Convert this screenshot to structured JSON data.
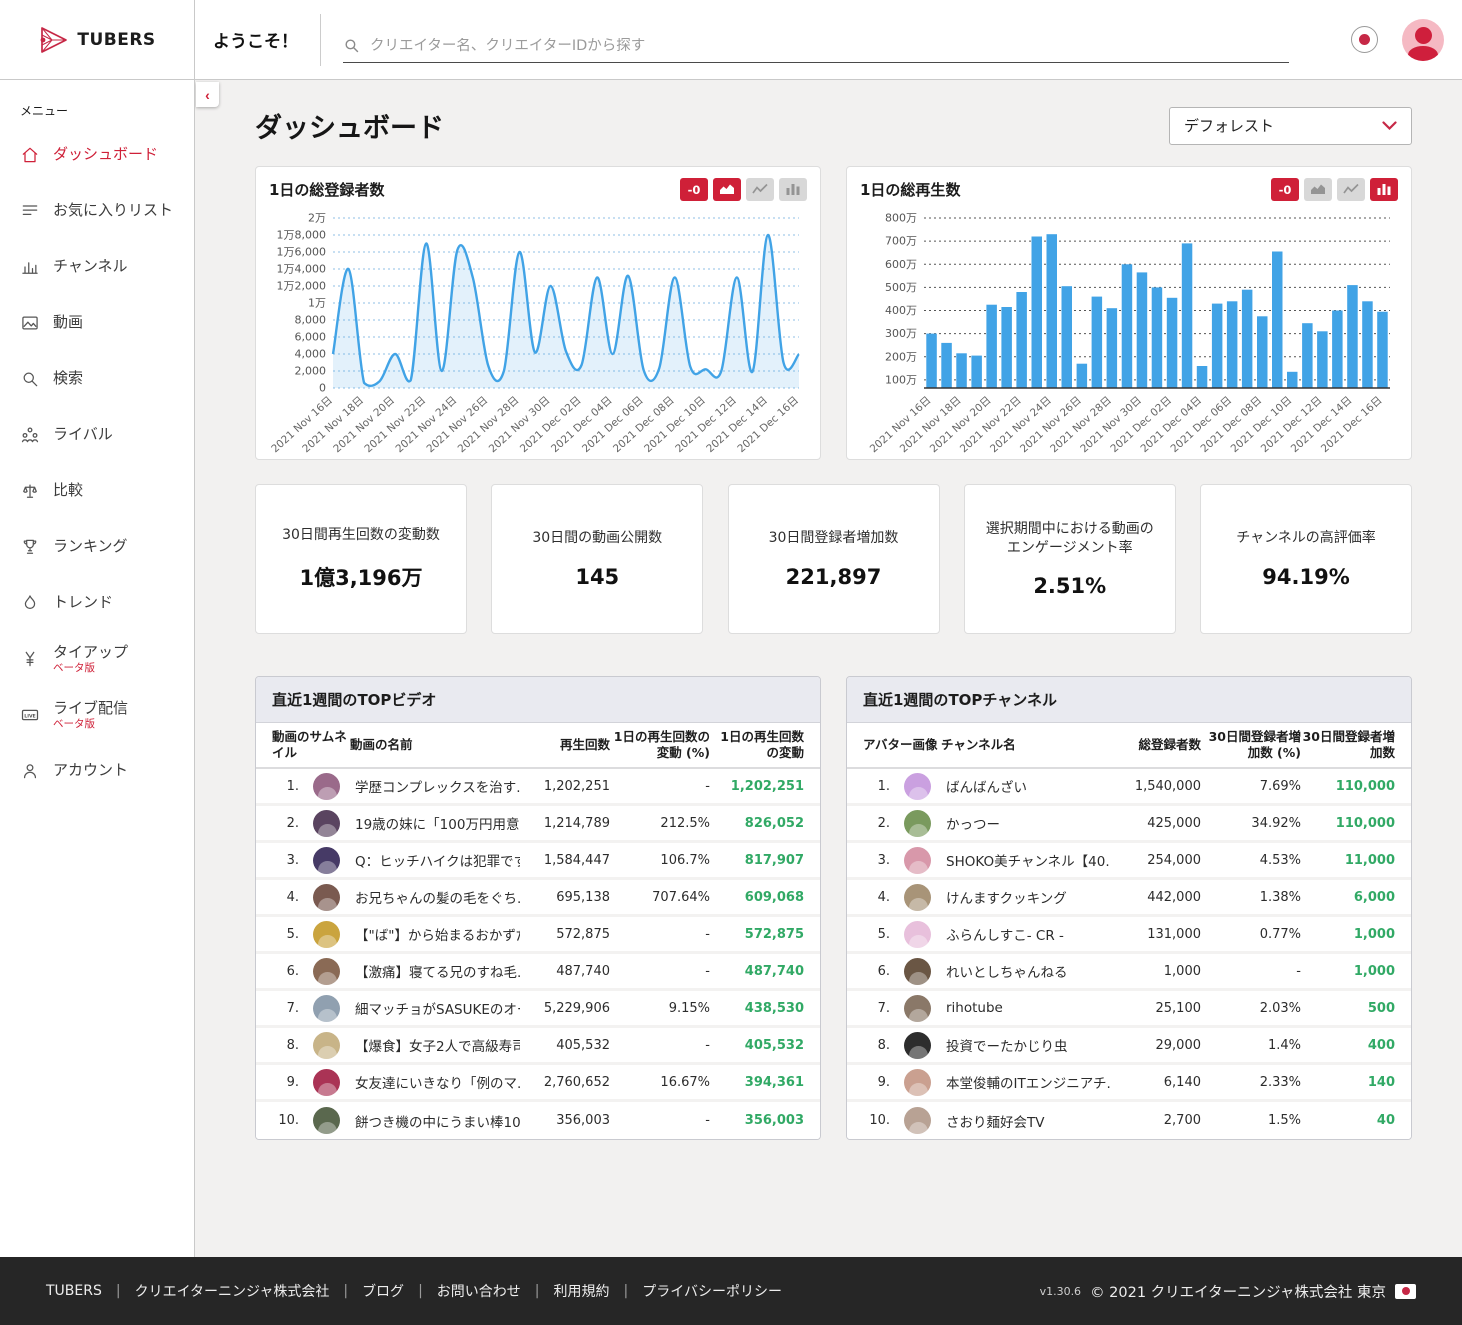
{
  "colors": {
    "accent": "#cf2038",
    "logo_red": "#c62846",
    "chart_blue": "#41a3e6",
    "positive_green": "#31a965"
  },
  "brand": {
    "name": "TUBERS"
  },
  "header": {
    "welcome": "ようこそ！",
    "search_placeholder": "クリエイター名、クリエイターIDから探す"
  },
  "sidebar": {
    "menu_label": "メニュー",
    "items": [
      {
        "key": "dashboard",
        "label": "ダッシュボード",
        "icon": "home-icon",
        "active": true
      },
      {
        "key": "favorites",
        "label": "お気に入りリスト",
        "icon": "list-icon",
        "active": false
      },
      {
        "key": "channel",
        "label": "チャンネル",
        "icon": "bar-chart-icon",
        "active": false
      },
      {
        "key": "video",
        "label": "動画",
        "icon": "image-icon",
        "active": false
      },
      {
        "key": "search",
        "label": "検索",
        "icon": "search-icon",
        "active": false
      },
      {
        "key": "rival",
        "label": "ライバル",
        "icon": "group-icon",
        "active": false
      },
      {
        "key": "compare",
        "label": "比較",
        "icon": "scales-icon",
        "active": false
      },
      {
        "key": "ranking",
        "label": "ランキング",
        "icon": "trophy-icon",
        "active": false
      },
      {
        "key": "trend",
        "label": "トレンド",
        "icon": "flame-icon",
        "active": false
      },
      {
        "key": "tieup",
        "label": "タイアップ",
        "icon": "yen-icon",
        "active": false,
        "badge": "ベータ版"
      },
      {
        "key": "live",
        "label": "ライブ配信",
        "icon": "live-icon",
        "active": false,
        "badge": "ベータ版"
      },
      {
        "key": "account",
        "label": "アカウント",
        "icon": "person-icon",
        "active": false
      }
    ]
  },
  "page": {
    "title": "ダッシュボード",
    "channel_filter": "デフォレスト",
    "collapse_glyph": "‹"
  },
  "chart_data": [
    {
      "type": "area",
      "title": "1日の総登録者数",
      "toolbar": {
        "badge": "-0",
        "modes": [
          "area",
          "line",
          "bar"
        ],
        "active": "area"
      },
      "x": [
        "2021 Nov 16日",
        "2021 Nov 17日",
        "2021 Nov 18日",
        "2021 Nov 19日",
        "2021 Nov 20日",
        "2021 Nov 21日",
        "2021 Nov 22日",
        "2021 Nov 23日",
        "2021 Nov 24日",
        "2021 Nov 25日",
        "2021 Nov 26日",
        "2021 Nov 27日",
        "2021 Nov 28日",
        "2021 Nov 29日",
        "2021 Nov 30日",
        "2021 Dec 01日",
        "2021 Dec 02日",
        "2021 Dec 03日",
        "2021 Dec 04日",
        "2021 Dec 05日",
        "2021 Dec 06日",
        "2021 Dec 07日",
        "2021 Dec 08日",
        "2021 Dec 09日",
        "2021 Dec 10日",
        "2021 Dec 11日",
        "2021 Dec 12日",
        "2021 Dec 13日",
        "2021 Dec 14日",
        "2021 Dec 15日",
        "2021 Dec 16日"
      ],
      "values": [
        4000,
        14000,
        600,
        800,
        4000,
        900,
        17000,
        2000,
        16200,
        13000,
        2600,
        2000,
        16000,
        4200,
        12000,
        4300,
        2700,
        13000,
        4000,
        13200,
        2100,
        2300,
        13000,
        2500,
        2200,
        2000,
        13000,
        1900,
        18000,
        3000,
        4000
      ],
      "ylim": [
        0,
        20000
      ],
      "yticks": [
        0,
        2000,
        4000,
        6000,
        8000,
        10000,
        12000,
        14000,
        16000,
        18000,
        20000
      ],
      "ytick_labels": [
        "0",
        "2,000",
        "4,000",
        "6,000",
        "8,000",
        "1万",
        "1万2,000",
        "1万4,000",
        "1万6,000",
        "1万8,000",
        "2万"
      ],
      "x_label_every": 2,
      "grid": "dotted",
      "color": "#41a3e6"
    },
    {
      "type": "bar",
      "title": "1日の総再生数",
      "toolbar": {
        "badge": "-0",
        "modes": [
          "area",
          "line",
          "bar"
        ],
        "active": "bar"
      },
      "x": [
        "2021 Nov 16日",
        "2021 Nov 17日",
        "2021 Nov 18日",
        "2021 Nov 19日",
        "2021 Nov 20日",
        "2021 Nov 21日",
        "2021 Nov 22日",
        "2021 Nov 23日",
        "2021 Nov 24日",
        "2021 Nov 25日",
        "2021 Nov 26日",
        "2021 Nov 27日",
        "2021 Nov 28日",
        "2021 Nov 29日",
        "2021 Nov 30日",
        "2021 Dec 01日",
        "2021 Dec 02日",
        "2021 Dec 03日",
        "2021 Dec 04日",
        "2021 Dec 05日",
        "2021 Dec 06日",
        "2021 Dec 07日",
        "2021 Dec 08日",
        "2021 Dec 09日",
        "2021 Dec 10日",
        "2021 Dec 11日",
        "2021 Dec 12日",
        "2021 Dec 13日",
        "2021 Dec 14日",
        "2021 Dec 15日",
        "2021 Dec 16日"
      ],
      "values": [
        300,
        260,
        215,
        205,
        425,
        415,
        480,
        720,
        730,
        505,
        170,
        460,
        410,
        600,
        565,
        500,
        455,
        690,
        160,
        430,
        440,
        490,
        375,
        655,
        135,
        345,
        310,
        400,
        510,
        440,
        395
      ],
      "unit": "万 (x10,000)",
      "ylim": [
        65,
        800
      ],
      "yticks": [
        100,
        200,
        300,
        400,
        500,
        600,
        700,
        800
      ],
      "ytick_labels": [
        "100万",
        "200万",
        "300万",
        "400万",
        "500万",
        "600万",
        "700万",
        "800万"
      ],
      "x_label_every": 2,
      "grid": "dotted",
      "color": "#41a3e6"
    }
  ],
  "stats": [
    {
      "label": "30日間再生回数の変動数",
      "value": "1億3,196万"
    },
    {
      "label": "30日間の動画公開数",
      "value": "145"
    },
    {
      "label": "30日間登録者増加数",
      "value": "221,897"
    },
    {
      "label": "選択期間中における動画のエンゲージメント率",
      "value": "2.51%"
    },
    {
      "label": "チャンネルの高評価率",
      "value": "94.19%"
    }
  ],
  "tables": {
    "videos": {
      "title": "直近1週間のTOPビデオ",
      "columns": [
        "動画のサムネイル",
        "動画の名前",
        "再生回数",
        "1日の再生回数の変動 (%)",
        "1日の再生回数の変動"
      ],
      "rows": [
        {
          "rank": "1.",
          "name": "学歴コンプレックスを治す...",
          "views": "1,202,251",
          "pct": "-",
          "change": "1,202,251",
          "color": "#9a6a8a"
        },
        {
          "rank": "2.",
          "name": "19歳の妹に「100万円用意...",
          "views": "1,214,789",
          "pct": "212.5%",
          "change": "826,052",
          "color": "#5a4460"
        },
        {
          "rank": "3.",
          "name": "Q：ヒッチハイクは犯罪です...",
          "views": "1,584,447",
          "pct": "106.7%",
          "change": "817,907",
          "color": "#463a66"
        },
        {
          "rank": "4.",
          "name": "お兄ちゃんの髪の毛をぐち...",
          "views": "695,138",
          "pct": "707.64%",
          "change": "609,068",
          "color": "#7a5a50"
        },
        {
          "rank": "5.",
          "name": "【\"ば\"】から始まるおかずだ...",
          "views": "572,875",
          "pct": "-",
          "change": "572,875",
          "color": "#caa43e"
        },
        {
          "rank": "6.",
          "name": "【激痛】寝てる兄のすね毛...",
          "views": "487,740",
          "pct": "-",
          "change": "487,740",
          "color": "#8a6a55"
        },
        {
          "rank": "7.",
          "name": "細マッチョがSASUKEのオー...",
          "views": "5,229,906",
          "pct": "9.15%",
          "change": "438,530",
          "color": "#90a0b0"
        },
        {
          "rank": "8.",
          "name": "【爆食】女子2人で高級寿司...",
          "views": "405,532",
          "pct": "-",
          "change": "405,532",
          "color": "#c8b488"
        },
        {
          "rank": "9.",
          "name": "女友達にいきなり「例のマ...",
          "views": "2,760,652",
          "pct": "16.67%",
          "change": "394,361",
          "color": "#aa3355"
        },
        {
          "rank": "10.",
          "name": "餅つき機の中にうまい棒100...",
          "views": "356,003",
          "pct": "-",
          "change": "356,003",
          "color": "#5a684e"
        }
      ]
    },
    "channels": {
      "title": "直近1週間のTOPチャンネル",
      "columns": [
        "アバター画像",
        "チャンネル名",
        "総登録者数",
        "30日間登録者増加数 (%)",
        "30日間登録者増加数"
      ],
      "rows": [
        {
          "rank": "1.",
          "name": "ばんばんざい",
          "views": "1,540,000",
          "pct": "7.69%",
          "change": "110,000",
          "color": "#caa0e0"
        },
        {
          "rank": "2.",
          "name": "かっつー",
          "views": "425,000",
          "pct": "34.92%",
          "change": "110,000",
          "color": "#7a9a5e"
        },
        {
          "rank": "3.",
          "name": "SHOKO美チャンネル【40...",
          "views": "254,000",
          "pct": "4.53%",
          "change": "11,000",
          "color": "#d898aa"
        },
        {
          "rank": "4.",
          "name": "けんますクッキング",
          "views": "442,000",
          "pct": "1.38%",
          "change": "6,000",
          "color": "#a89478"
        },
        {
          "rank": "5.",
          "name": "ふらんしすこ- CR -",
          "views": "131,000",
          "pct": "0.77%",
          "change": "1,000",
          "color": "#e8c0dc"
        },
        {
          "rank": "6.",
          "name": "れいとしちゃんねる",
          "views": "1,000",
          "pct": "-",
          "change": "1,000",
          "color": "#6a5644"
        },
        {
          "rank": "7.",
          "name": "rihotube",
          "views": "25,100",
          "pct": "2.03%",
          "change": "500",
          "color": "#8a7868"
        },
        {
          "rank": "8.",
          "name": "投資でーたかじり虫",
          "views": "29,000",
          "pct": "1.4%",
          "change": "400",
          "color": "#2d2d2d"
        },
        {
          "rank": "9.",
          "name": "本堂俊輔のITエンジニアチ...",
          "views": "6,140",
          "pct": "2.33%",
          "change": "140",
          "color": "#caa090"
        },
        {
          "rank": "10.",
          "name": "さおり麺好会TV",
          "views": "2,700",
          "pct": "1.5%",
          "change": "40",
          "color": "#b8a294"
        }
      ]
    }
  },
  "footer": {
    "links": [
      "TUBERS",
      "クリエイターニンジャ株式会社",
      "ブログ",
      "お問い合わせ",
      "利用規約",
      "プライバシーポリシー"
    ],
    "version": "v1.30.6",
    "copyright": "© 2021 クリエイターニンジャ株式会社 東京"
  }
}
